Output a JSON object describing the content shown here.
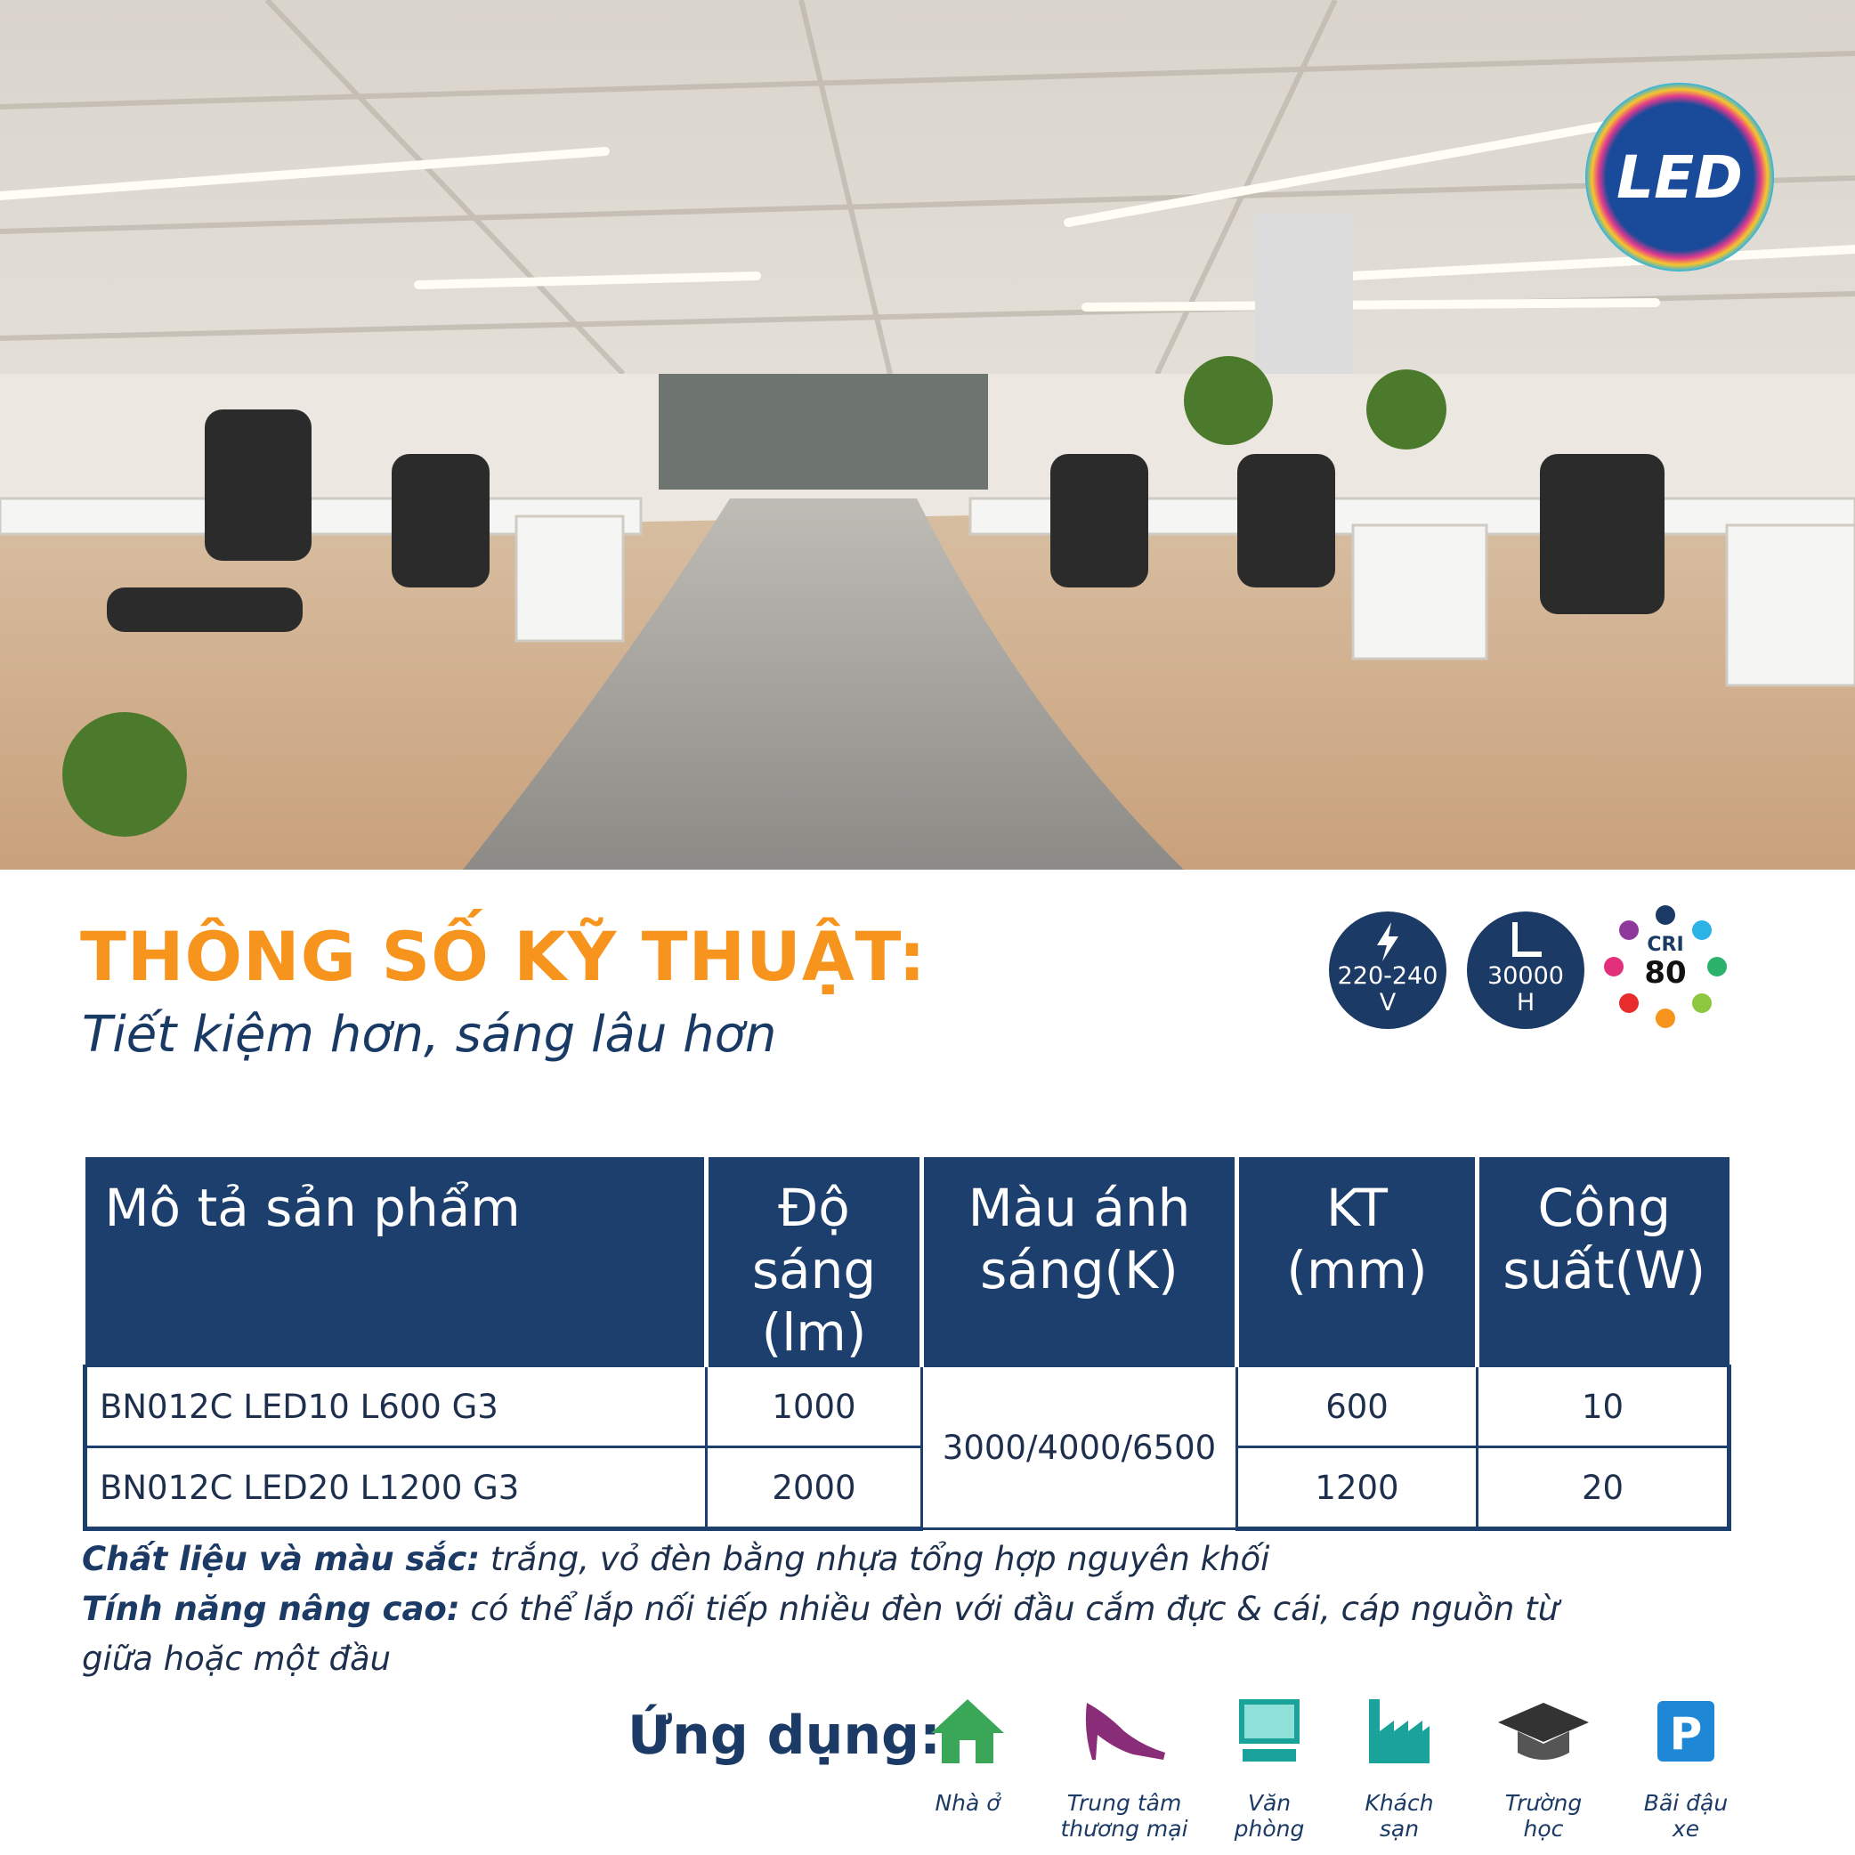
{
  "badge": "LED",
  "header": {
    "title": "THÔNG SỐ KỸ THUẬT:",
    "subtitle": "Tiết kiệm hơn, sáng lâu hơn"
  },
  "spec_icons": [
    {
      "lines": [
        "220-240",
        "V"
      ]
    },
    {
      "lines": [
        "30000",
        "H"
      ]
    },
    {
      "lines": [
        "CRI",
        "80"
      ]
    }
  ],
  "table": {
    "headers": [
      [
        "Mô tả sản phẩm"
      ],
      [
        "Độ sáng",
        "(lm)"
      ],
      [
        "Màu ánh",
        "sáng(K)"
      ],
      [
        "KT",
        "(mm)"
      ],
      [
        "Công",
        "suất(W)"
      ]
    ],
    "rows": [
      [
        "BN012C LED10 L600 G3",
        "1000",
        "3000/4000/6500",
        "600",
        "10"
      ],
      [
        "BN012C LED20 L1200 G3",
        "2000",
        "1200",
        "20"
      ]
    ]
  },
  "notes": [
    {
      "label": "Chất liệu và màu sắc:",
      "text": "trắng, vỏ đèn bằng nhựa tổng hợp nguyên khối"
    },
    {
      "label": "Tính năng nâng cao:",
      "text": "có thể lắp nối tiếp nhiều đèn với đầu cắm đực & cái, cáp nguồn từ giữa hoặc một đầu"
    }
  ],
  "applications": {
    "title": "Ứng dụng:",
    "items": [
      [
        "Nhà ở"
      ],
      [
        "Trung tâm",
        "thương mại"
      ],
      [
        "Văn",
        "phòng"
      ],
      [
        "Khách",
        "sạn"
      ],
      [
        "Trường",
        "học"
      ],
      [
        "Bãi đậu",
        "xe"
      ]
    ]
  }
}
